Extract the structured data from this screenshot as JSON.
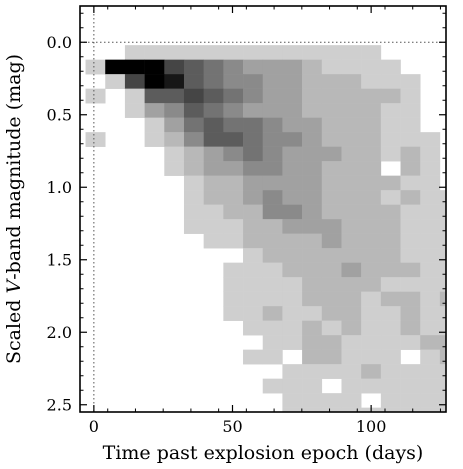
{
  "chart_data": {
    "type": "heatmap",
    "title": "",
    "xlabel": "Time past explosion epoch (days)",
    "ylabel_prefix": "Scaled ",
    "ylabel_italic": "V",
    "ylabel_suffix": "-band magnitude (mag)",
    "xlim": [
      -5,
      127
    ],
    "ylim": [
      2.55,
      -0.25
    ],
    "y_inverted": true,
    "x_ticks": [
      0,
      50,
      100
    ],
    "x_tick_labels": [
      "0",
      "50",
      "100"
    ],
    "y_ticks": [
      0.0,
      0.5,
      1.0,
      1.5,
      2.0,
      2.5
    ],
    "y_tick_labels": [
      "0.0",
      "0.5",
      "1.0",
      "1.5",
      "2.0",
      "2.5"
    ],
    "reference_lines": {
      "x": 0,
      "y": 0.0,
      "style": "dotted"
    },
    "grid": false,
    "bin_x_edges_start": -3,
    "bin_x_width": 7.1,
    "bin_y_edges_start": -0.08,
    "bin_y_width": 0.1,
    "colormap": "grey-reversed",
    "max_count": 10,
    "counts": [
      [
        0,
        0,
        0,
        0,
        0,
        0,
        0,
        0,
        0,
        0,
        0,
        0,
        0,
        0,
        0,
        0,
        0,
        0,
        0
      ],
      [
        0,
        0,
        1,
        1,
        1,
        1,
        1,
        1,
        1,
        1,
        1,
        1,
        1,
        1,
        1,
        0,
        0,
        0,
        0
      ],
      [
        1,
        10,
        10,
        10,
        7,
        6,
        5,
        4,
        3,
        3,
        3,
        2,
        1,
        1,
        1,
        1,
        0,
        0,
        0
      ],
      [
        0,
        1,
        7,
        10,
        9,
        6,
        5,
        4,
        4,
        3,
        3,
        2,
        2,
        2,
        1,
        1,
        1,
        0,
        0
      ],
      [
        1,
        0,
        1,
        6,
        6,
        7,
        6,
        5,
        4,
        3,
        3,
        2,
        2,
        2,
        2,
        2,
        1,
        0,
        0
      ],
      [
        0,
        0,
        1,
        3,
        4,
        6,
        5,
        4,
        3,
        3,
        3,
        2,
        2,
        2,
        2,
        1,
        1,
        0,
        0
      ],
      [
        0,
        0,
        0,
        1,
        3,
        5,
        6,
        5,
        5,
        4,
        3,
        3,
        2,
        2,
        2,
        1,
        1,
        0,
        0
      ],
      [
        1,
        0,
        0,
        1,
        2,
        4,
        6,
        6,
        5,
        4,
        4,
        3,
        2,
        2,
        2,
        1,
        1,
        1,
        0
      ],
      [
        0,
        0,
        0,
        0,
        1,
        2,
        3,
        4,
        5,
        4,
        3,
        3,
        3,
        2,
        2,
        1,
        2,
        1,
        0
      ],
      [
        0,
        0,
        0,
        0,
        1,
        2,
        3,
        3,
        4,
        4,
        3,
        3,
        2,
        2,
        2,
        0,
        2,
        1,
        0
      ],
      [
        0,
        0,
        0,
        0,
        0,
        1,
        2,
        2,
        3,
        3,
        3,
        3,
        2,
        2,
        2,
        2,
        1,
        1,
        0
      ],
      [
        0,
        0,
        0,
        0,
        0,
        1,
        2,
        2,
        3,
        4,
        3,
        3,
        2,
        2,
        2,
        1,
        2,
        1,
        1
      ],
      [
        0,
        0,
        0,
        0,
        0,
        1,
        1,
        2,
        2,
        4,
        4,
        3,
        2,
        2,
        2,
        2,
        1,
        1,
        1
      ],
      [
        0,
        0,
        0,
        0,
        0,
        1,
        1,
        1,
        2,
        2,
        3,
        3,
        3,
        2,
        2,
        2,
        1,
        1,
        1
      ],
      [
        0,
        0,
        0,
        0,
        0,
        0,
        1,
        1,
        2,
        2,
        2,
        2,
        3,
        2,
        2,
        2,
        1,
        1,
        1
      ],
      [
        0,
        0,
        0,
        0,
        0,
        0,
        0,
        0,
        1,
        2,
        2,
        2,
        2,
        2,
        2,
        2,
        1,
        1,
        1
      ],
      [
        0,
        0,
        0,
        0,
        0,
        0,
        0,
        1,
        1,
        1,
        2,
        2,
        2,
        3,
        2,
        2,
        2,
        1,
        1
      ],
      [
        0,
        0,
        0,
        0,
        0,
        0,
        0,
        1,
        1,
        1,
        1,
        2,
        2,
        2,
        2,
        1,
        1,
        1,
        1
      ],
      [
        0,
        0,
        0,
        0,
        0,
        0,
        0,
        1,
        1,
        1,
        1,
        2,
        2,
        2,
        1,
        2,
        2,
        1,
        2
      ],
      [
        0,
        0,
        0,
        0,
        0,
        0,
        0,
        1,
        1,
        2,
        1,
        1,
        2,
        2,
        1,
        1,
        2,
        1,
        1
      ],
      [
        0,
        0,
        0,
        0,
        0,
        0,
        0,
        0,
        1,
        1,
        1,
        2,
        1,
        2,
        1,
        1,
        2,
        1,
        1
      ],
      [
        0,
        0,
        0,
        0,
        0,
        0,
        0,
        0,
        0,
        1,
        1,
        2,
        2,
        1,
        1,
        1,
        1,
        2,
        2
      ],
      [
        0,
        0,
        0,
        0,
        0,
        0,
        0,
        0,
        1,
        1,
        0,
        2,
        2,
        1,
        1,
        1,
        0,
        1,
        2
      ],
      [
        0,
        0,
        0,
        0,
        0,
        0,
        0,
        0,
        0,
        0,
        1,
        1,
        1,
        1,
        2,
        1,
        1,
        1,
        1
      ],
      [
        0,
        0,
        0,
        0,
        0,
        0,
        0,
        0,
        0,
        1,
        1,
        1,
        0,
        1,
        1,
        1,
        1,
        1,
        1
      ],
      [
        0,
        0,
        0,
        0,
        0,
        0,
        0,
        0,
        0,
        0,
        1,
        1,
        1,
        1,
        0,
        1,
        1,
        1,
        1
      ],
      [
        0,
        0,
        0,
        0,
        0,
        0,
        0,
        0,
        0,
        0,
        1,
        1,
        1,
        1,
        1,
        1,
        1,
        1,
        1
      ],
      [
        0,
        0,
        0,
        0,
        0,
        0,
        0,
        0,
        0,
        0,
        0,
        1,
        1,
        1,
        1,
        1,
        1,
        1,
        1
      ]
    ]
  }
}
